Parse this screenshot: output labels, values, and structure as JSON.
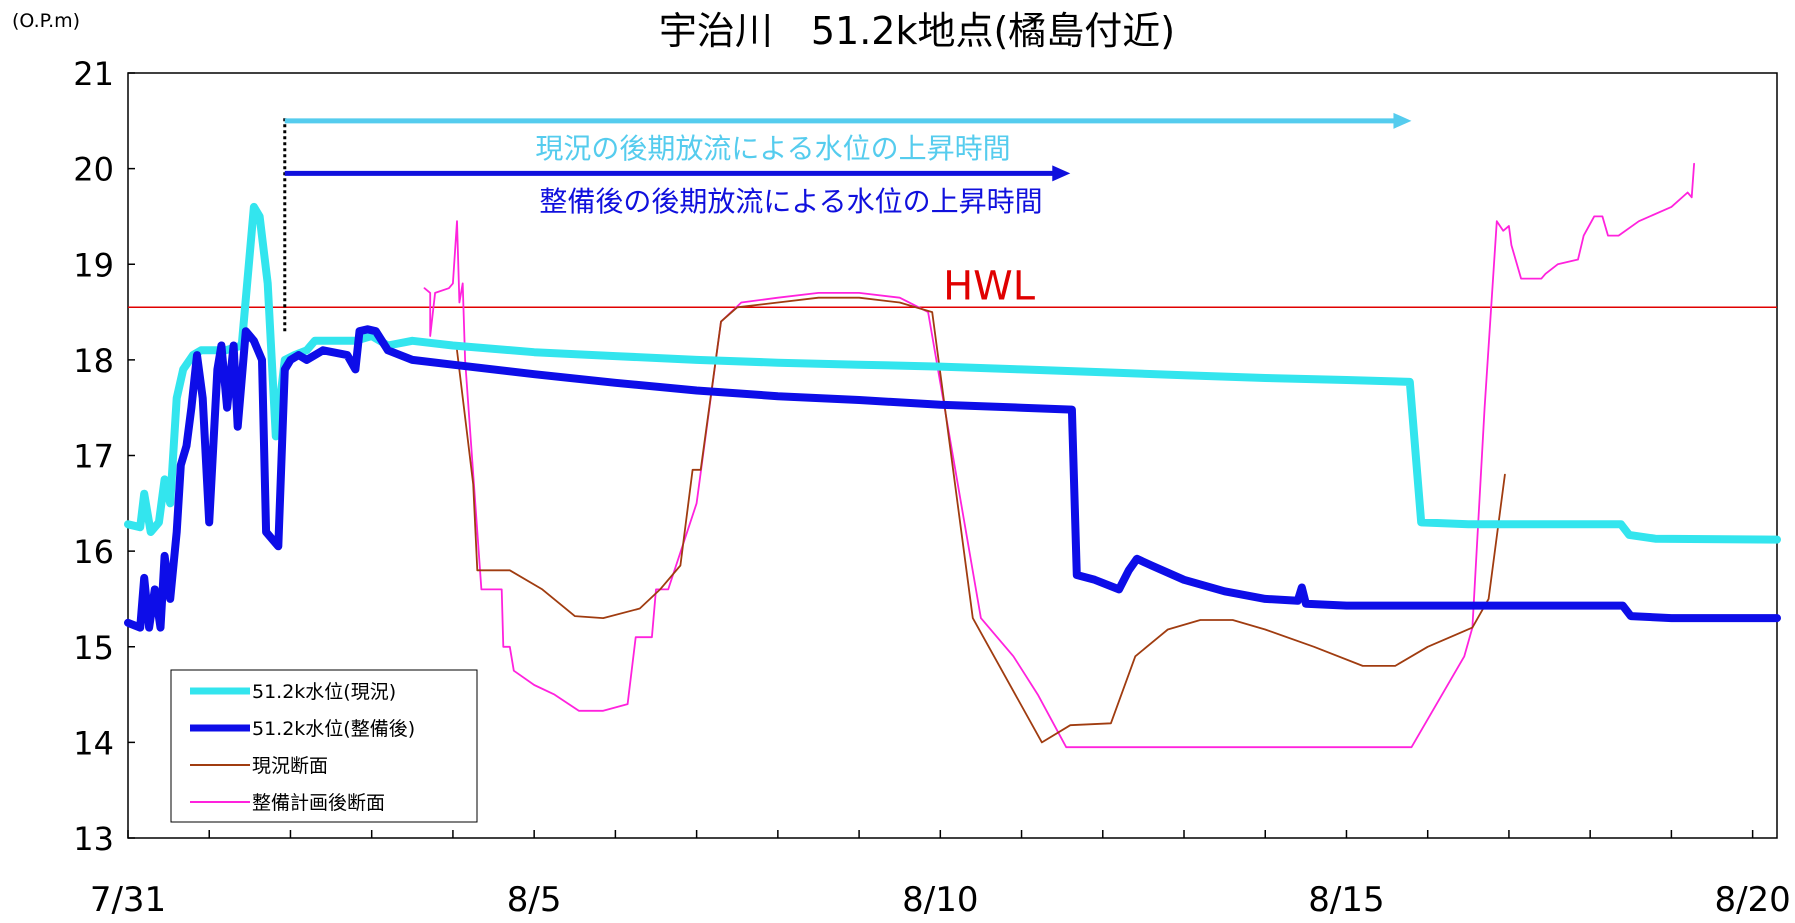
{
  "chart_data": {
    "type": "line",
    "title": "宇治川　51.2k地点(橘島付近)",
    "unit_label": "(O.P.m)",
    "xlabel": "",
    "ylabel": "",
    "x_tick_labels": [
      "7/31",
      "8/5",
      "8/10",
      "8/15",
      "8/20"
    ],
    "x_ticks_days": [
      0,
      5,
      10,
      15,
      20
    ],
    "xlim_days": [
      0,
      20.3
    ],
    "ylim": [
      13,
      21
    ],
    "yticks": [
      13,
      14,
      15,
      16,
      17,
      18,
      19,
      20,
      21
    ],
    "grid": false,
    "legend_position": "lower-left",
    "hwl": {
      "label": "HWL",
      "value": 18.55,
      "color": "#e00000"
    },
    "annotations": [
      {
        "text": "現況の後期放流による水位の上昇時間",
        "color": "#55ccee",
        "arrow_from_day": 1.93,
        "arrow_to_day": 15.8,
        "y": 20.5
      },
      {
        "text": "整備後の後期放流による水位の上昇時間",
        "color": "#1010dd",
        "arrow_from_day": 1.93,
        "arrow_to_day": 11.6,
        "y": 19.95
      }
    ],
    "marker_line": {
      "day": 1.93,
      "from_y": 18.3,
      "to_y": 20.55
    },
    "series": [
      {
        "name": "51.2k水位(現況)",
        "color": "#33e5ee",
        "width": 8,
        "points": [
          [
            0,
            16.28
          ],
          [
            0.15,
            16.25
          ],
          [
            0.2,
            16.6
          ],
          [
            0.28,
            16.2
          ],
          [
            0.38,
            16.3
          ],
          [
            0.45,
            16.75
          ],
          [
            0.52,
            16.5
          ],
          [
            0.6,
            17.6
          ],
          [
            0.68,
            17.9
          ],
          [
            0.8,
            18.05
          ],
          [
            0.9,
            18.1
          ],
          [
            1.0,
            18.1
          ],
          [
            1.2,
            18.1
          ],
          [
            1.4,
            18.15
          ],
          [
            1.55,
            19.6
          ],
          [
            1.62,
            19.5
          ],
          [
            1.72,
            18.8
          ],
          [
            1.82,
            17.2
          ],
          [
            1.93,
            18.0
          ],
          [
            2.05,
            18.05
          ],
          [
            2.2,
            18.1
          ],
          [
            2.3,
            18.2
          ],
          [
            2.5,
            18.2
          ],
          [
            2.8,
            18.2
          ],
          [
            3.0,
            18.25
          ],
          [
            3.2,
            18.15
          ],
          [
            3.5,
            18.2
          ],
          [
            4.0,
            18.15
          ],
          [
            5.0,
            18.08
          ],
          [
            6.0,
            18.04
          ],
          [
            7.0,
            18.0
          ],
          [
            8.0,
            17.97
          ],
          [
            9.0,
            17.95
          ],
          [
            10.0,
            17.93
          ],
          [
            11.0,
            17.9
          ],
          [
            12.0,
            17.87
          ],
          [
            13.0,
            17.84
          ],
          [
            14.0,
            17.81
          ],
          [
            15.0,
            17.79
          ],
          [
            15.78,
            17.77
          ],
          [
            15.92,
            16.3
          ],
          [
            16.5,
            16.28
          ],
          [
            17.0,
            16.28
          ],
          [
            18.0,
            16.28
          ],
          [
            18.38,
            16.28
          ],
          [
            18.48,
            16.17
          ],
          [
            18.8,
            16.13
          ],
          [
            20.3,
            16.12
          ]
        ]
      },
      {
        "name": "51.2k水位(整備後)",
        "color": "#0d0de8",
        "width": 8,
        "points": [
          [
            0,
            15.25
          ],
          [
            0.15,
            15.2
          ],
          [
            0.2,
            15.72
          ],
          [
            0.26,
            15.2
          ],
          [
            0.33,
            15.6
          ],
          [
            0.4,
            15.2
          ],
          [
            0.45,
            15.95
          ],
          [
            0.52,
            15.5
          ],
          [
            0.6,
            16.2
          ],
          [
            0.65,
            16.9
          ],
          [
            0.72,
            17.1
          ],
          [
            0.78,
            17.5
          ],
          [
            0.85,
            18.05
          ],
          [
            0.92,
            17.6
          ],
          [
            1.0,
            16.3
          ],
          [
            1.05,
            17.1
          ],
          [
            1.1,
            17.9
          ],
          [
            1.15,
            18.15
          ],
          [
            1.22,
            17.5
          ],
          [
            1.3,
            18.15
          ],
          [
            1.35,
            17.3
          ],
          [
            1.45,
            18.3
          ],
          [
            1.55,
            18.2
          ],
          [
            1.65,
            18.0
          ],
          [
            1.7,
            16.2
          ],
          [
            1.85,
            16.05
          ],
          [
            1.93,
            17.9
          ],
          [
            2.0,
            18.0
          ],
          [
            2.1,
            18.05
          ],
          [
            2.2,
            18.0
          ],
          [
            2.4,
            18.1
          ],
          [
            2.7,
            18.05
          ],
          [
            2.8,
            17.9
          ],
          [
            2.85,
            18.3
          ],
          [
            2.95,
            18.32
          ],
          [
            3.05,
            18.3
          ],
          [
            3.2,
            18.1
          ],
          [
            3.5,
            18.0
          ],
          [
            4.0,
            17.95
          ],
          [
            5.0,
            17.85
          ],
          [
            6.0,
            17.76
          ],
          [
            7.0,
            17.68
          ],
          [
            8.0,
            17.62
          ],
          [
            9.0,
            17.58
          ],
          [
            10.0,
            17.53
          ],
          [
            11.0,
            17.5
          ],
          [
            11.62,
            17.48
          ],
          [
            11.68,
            15.75
          ],
          [
            11.9,
            15.7
          ],
          [
            12.2,
            15.6
          ],
          [
            12.32,
            15.8
          ],
          [
            12.42,
            15.92
          ],
          [
            12.6,
            15.85
          ],
          [
            13.0,
            15.7
          ],
          [
            13.5,
            15.58
          ],
          [
            14.0,
            15.5
          ],
          [
            14.4,
            15.48
          ],
          [
            14.45,
            15.62
          ],
          [
            14.5,
            15.45
          ],
          [
            15.0,
            15.43
          ],
          [
            16.0,
            15.43
          ],
          [
            17.0,
            15.43
          ],
          [
            18.0,
            15.43
          ],
          [
            18.4,
            15.43
          ],
          [
            18.5,
            15.32
          ],
          [
            19.0,
            15.3
          ],
          [
            20.3,
            15.3
          ]
        ]
      },
      {
        "name": "現況断面",
        "color": "#a03c10",
        "width": 1.8,
        "points": [
          [
            4.05,
            18.1
          ],
          [
            4.25,
            16.7
          ],
          [
            4.3,
            15.8
          ],
          [
            4.7,
            15.8
          ],
          [
            5.1,
            15.6
          ],
          [
            5.5,
            15.32
          ],
          [
            5.85,
            15.3
          ],
          [
            6.3,
            15.4
          ],
          [
            6.55,
            15.6
          ],
          [
            6.8,
            15.85
          ],
          [
            6.95,
            16.85
          ],
          [
            7.05,
            16.85
          ],
          [
            7.3,
            18.4
          ],
          [
            7.5,
            18.55
          ],
          [
            8.0,
            18.6
          ],
          [
            8.5,
            18.65
          ],
          [
            9.0,
            18.65
          ],
          [
            9.5,
            18.6
          ],
          [
            9.9,
            18.5
          ],
          [
            10.4,
            15.3
          ],
          [
            11.25,
            14.0
          ],
          [
            11.6,
            14.18
          ],
          [
            12.1,
            14.2
          ],
          [
            12.4,
            14.9
          ],
          [
            12.8,
            15.18
          ],
          [
            13.2,
            15.28
          ],
          [
            13.6,
            15.28
          ],
          [
            14.0,
            15.18
          ],
          [
            14.6,
            15.0
          ],
          [
            15.2,
            14.8
          ],
          [
            15.6,
            14.8
          ],
          [
            16.0,
            15.0
          ],
          [
            16.55,
            15.2
          ],
          [
            16.75,
            15.5
          ],
          [
            16.95,
            16.8
          ]
        ]
      },
      {
        "name": "整備計画後断面",
        "color": "#ff22dd",
        "width": 1.8,
        "points": [
          [
            3.65,
            18.75
          ],
          [
            3.72,
            18.7
          ],
          [
            3.72,
            18.25
          ],
          [
            3.78,
            18.7
          ],
          [
            3.95,
            18.75
          ],
          [
            4.0,
            18.8
          ],
          [
            4.05,
            19.45
          ],
          [
            4.08,
            18.6
          ],
          [
            4.12,
            18.8
          ],
          [
            4.15,
            18.0
          ],
          [
            4.35,
            15.6
          ],
          [
            4.6,
            15.6
          ],
          [
            4.62,
            15.0
          ],
          [
            4.7,
            15.0
          ],
          [
            4.75,
            14.75
          ],
          [
            5.0,
            14.6
          ],
          [
            5.25,
            14.5
          ],
          [
            5.55,
            14.33
          ],
          [
            5.85,
            14.33
          ],
          [
            6.15,
            14.4
          ],
          [
            6.25,
            15.1
          ],
          [
            6.45,
            15.1
          ],
          [
            6.5,
            15.6
          ],
          [
            6.65,
            15.6
          ],
          [
            7.0,
            16.5
          ],
          [
            7.3,
            18.4
          ],
          [
            7.55,
            18.6
          ],
          [
            8.0,
            18.65
          ],
          [
            8.5,
            18.7
          ],
          [
            9.0,
            18.7
          ],
          [
            9.5,
            18.65
          ],
          [
            9.85,
            18.5
          ],
          [
            10.5,
            15.3
          ],
          [
            10.9,
            14.9
          ],
          [
            11.2,
            14.5
          ],
          [
            11.55,
            13.95
          ],
          [
            12.0,
            13.95
          ],
          [
            13.0,
            13.95
          ],
          [
            14.0,
            13.95
          ],
          [
            15.0,
            13.95
          ],
          [
            15.8,
            13.95
          ],
          [
            16.45,
            14.9
          ],
          [
            16.55,
            15.2
          ],
          [
            16.7,
            17.5
          ],
          [
            16.85,
            19.45
          ],
          [
            16.93,
            19.35
          ],
          [
            17.0,
            19.4
          ],
          [
            17.03,
            19.2
          ],
          [
            17.15,
            18.85
          ],
          [
            17.4,
            18.85
          ],
          [
            17.45,
            18.9
          ],
          [
            17.6,
            19.0
          ],
          [
            17.85,
            19.05
          ],
          [
            17.92,
            19.3
          ],
          [
            18.05,
            19.5
          ],
          [
            18.15,
            19.5
          ],
          [
            18.22,
            19.3
          ],
          [
            18.35,
            19.3
          ],
          [
            18.6,
            19.45
          ],
          [
            19.0,
            19.6
          ],
          [
            19.2,
            19.75
          ],
          [
            19.25,
            19.7
          ],
          [
            19.28,
            20.05
          ]
        ]
      }
    ]
  }
}
